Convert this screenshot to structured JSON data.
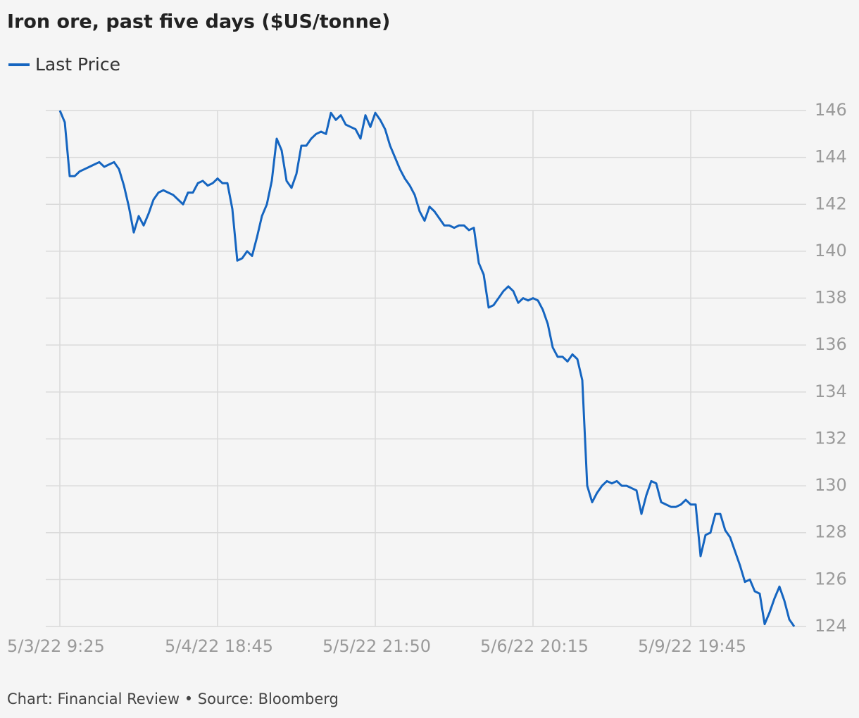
{
  "chart_data": {
    "type": "line",
    "title": "Iron ore, past five days ($US/tonne)",
    "footer": "Chart: Financial Review • Source: Bloomberg",
    "categories": [
      "5/3/22 9:25",
      null,
      null,
      null,
      null,
      null,
      null,
      null,
      null,
      null,
      null,
      null,
      null,
      null,
      null,
      null,
      null,
      null,
      null,
      null,
      null,
      null,
      null,
      null,
      null,
      null,
      null,
      null,
      null,
      null,
      null,
      null,
      "5/4/22 18:45",
      null,
      null,
      null,
      null,
      null,
      null,
      null,
      null,
      null,
      null,
      null,
      null,
      null,
      null,
      null,
      null,
      null,
      null,
      null,
      null,
      null,
      null,
      null,
      null,
      null,
      null,
      null,
      null,
      null,
      null,
      null,
      "5/5/22 21:50",
      null,
      null,
      null,
      null,
      null,
      null,
      null,
      null,
      null,
      null,
      null,
      null,
      null,
      null,
      null,
      null,
      null,
      null,
      null,
      null,
      null,
      null,
      null,
      null,
      null,
      null,
      null,
      null,
      null,
      null,
      null,
      "5/6/22 20:15",
      null,
      null,
      null,
      null,
      null,
      null,
      null,
      null,
      null,
      null,
      null,
      null,
      null,
      null,
      null,
      null,
      null,
      null,
      null,
      null,
      null,
      null,
      null,
      null,
      null,
      null,
      null,
      null,
      null,
      null,
      null,
      "5/9/22 19:45",
      null,
      null,
      null,
      null,
      null,
      null,
      null,
      null,
      null,
      null,
      null,
      null,
      null,
      null,
      null,
      null,
      null,
      null,
      null,
      null,
      null
    ],
    "series": [
      {
        "name": "Last Price",
        "color": "#1565c0",
        "values": [
          146,
          145.5,
          143.2,
          143.2,
          143.4,
          143.5,
          143.6,
          143.7,
          143.8,
          143.6,
          143.7,
          143.8,
          143.5,
          142.8,
          141.9,
          140.8,
          141.5,
          141.1,
          141.6,
          142.2,
          142.5,
          142.6,
          142.5,
          142.4,
          142.2,
          142,
          142.5,
          142.5,
          142.9,
          143.0,
          142.8,
          142.9,
          143.1,
          142.9,
          142.9,
          141.8,
          139.6,
          139.7,
          140,
          139.8,
          140.6,
          141.5,
          142.0,
          143.0,
          144.8,
          144.3,
          143.0,
          142.7,
          143.3,
          144.5,
          144.5,
          144.8,
          145.0,
          145.1,
          145.0,
          145.9,
          145.6,
          145.8,
          145.4,
          145.3,
          145.2,
          144.8,
          145.8,
          145.3,
          145.9,
          145.6,
          145.2,
          144.5,
          144.0,
          143.5,
          143.1,
          142.8,
          142.4,
          141.7,
          141.3,
          141.9,
          141.7,
          141.4,
          141.1,
          141.1,
          141.0,
          141.1,
          141.1,
          140.9,
          141.0,
          139.5,
          139.0,
          137.6,
          137.7,
          138.0,
          138.3,
          138.5,
          138.3,
          137.8,
          138.0,
          137.9,
          138.0,
          137.9,
          137.5,
          136.9,
          135.9,
          135.5,
          135.5,
          135.3,
          135.6,
          135.4,
          134.5,
          130.0,
          129.3,
          129.7,
          130.0,
          130.2,
          130.1,
          130.2,
          130.0,
          130.0,
          129.9,
          129.8,
          128.8,
          129.6,
          130.2,
          130.1,
          129.3,
          129.2,
          129.1,
          129.1,
          129.2,
          129.4,
          129.2,
          129.2,
          127.0,
          127.9,
          128.0,
          128.8,
          128.8,
          128.1,
          127.8,
          127.2,
          126.6,
          125.9,
          126.0,
          125.5,
          125.4,
          124.1,
          124.6,
          125.2,
          125.7,
          125.1,
          124.3,
          124.0
        ]
      }
    ],
    "ylim": [
      124,
      146
    ],
    "yticks": [
      124,
      126,
      128,
      130,
      132,
      134,
      136,
      138,
      140,
      142,
      144,
      146
    ],
    "grid": true
  }
}
